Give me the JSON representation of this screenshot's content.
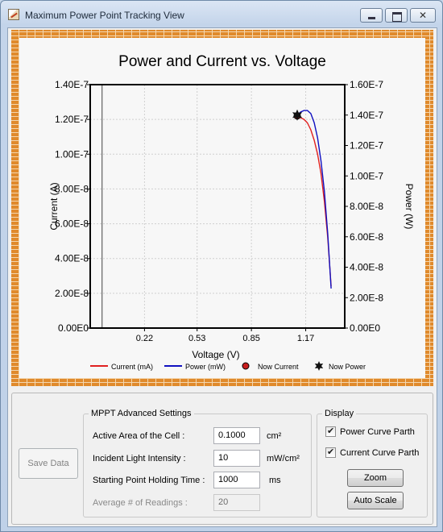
{
  "window": {
    "title": "Maximum Power Point Tracking View",
    "icon": "app-icon"
  },
  "chart_data": {
    "type": "line",
    "title": "Power and Current vs. Voltage",
    "xlabel": "Voltage (V)",
    "ylabel": "Current (A)",
    "y2label": "Power (W)",
    "xlim": [
      -0.1,
      1.4
    ],
    "ylim": [
      0,
      1.4e-07
    ],
    "y2lim": [
      0,
      1.6e-07
    ],
    "x_ticks": [
      "0.22",
      "0.53",
      "0.85",
      "1.17"
    ],
    "x_tick_values": [
      0.22,
      0.53,
      0.85,
      1.17
    ],
    "y_ticks": [
      "0.00E0",
      "2.00E-8",
      "4.00E-8",
      "6.00E-8",
      "8.00E-8",
      "1.00E-7",
      "1.20E-7",
      "1.40E-7"
    ],
    "y2_ticks": [
      "0.00E0",
      "2.00E-8",
      "4.00E-8",
      "6.00E-8",
      "8.00E-8",
      "1.00E-7",
      "1.20E-7",
      "1.40E-7",
      "1.60E-7"
    ],
    "grid": true,
    "legend_position": "bottom",
    "series": [
      {
        "name": "Current (mA)",
        "color": "#e02020",
        "axis": "left",
        "x": [
          1.12,
          1.14,
          1.16,
          1.18,
          1.2,
          1.22,
          1.24,
          1.26,
          1.28,
          1.3,
          1.32
        ],
        "y": [
          1.22e-07,
          1.21e-07,
          1.2e-07,
          1.18e-07,
          1.14e-07,
          1.08e-07,
          1e-07,
          8.9e-08,
          7.3e-08,
          5.2e-08,
          2.4e-08
        ]
      },
      {
        "name": "Power (mW)",
        "color": "#1010c0",
        "axis": "right",
        "x": [
          1.12,
          1.14,
          1.16,
          1.18,
          1.2,
          1.22,
          1.24,
          1.26,
          1.28,
          1.3,
          1.32
        ],
        "y": [
          1.4e-07,
          1.42e-07,
          1.43e-07,
          1.43e-07,
          1.41e-07,
          1.35e-07,
          1.25e-07,
          1.1e-07,
          9e-08,
          6.2e-08,
          2.6e-08
        ]
      }
    ],
    "markers": [
      {
        "name": "Now Current",
        "shape": "circle",
        "color": "#c81e1e",
        "x": 1.12,
        "y": 1.22e-07,
        "axis": "left"
      },
      {
        "name": "Now Power",
        "shape": "star",
        "color": "#111111",
        "x": 1.12,
        "y": 1.4e-07,
        "axis": "right"
      }
    ],
    "vertical_line_x": -0.03
  },
  "mppt": {
    "group_title": "MPPT Advanced Settings",
    "active_area_label": "Active Area of the Cell :",
    "active_area_value": "0.1000",
    "active_area_unit": "cm²",
    "light_intensity_label": "Incident Light Intensity :",
    "light_intensity_value": "10",
    "light_intensity_unit": "mW/cm²",
    "holding_time_label": "Starting Point Holding Time :",
    "holding_time_value": "1000",
    "holding_time_unit": "ms",
    "avg_readings_label": "Average # of Readings :",
    "avg_readings_value": "20"
  },
  "display": {
    "group_title": "Display",
    "power_curve_label": "Power Curve Parth",
    "current_curve_label": "Current Curve Parth",
    "zoom_label": "Zoom",
    "auto_scale_label": "Auto Scale"
  },
  "save_data_label": "Save Data"
}
